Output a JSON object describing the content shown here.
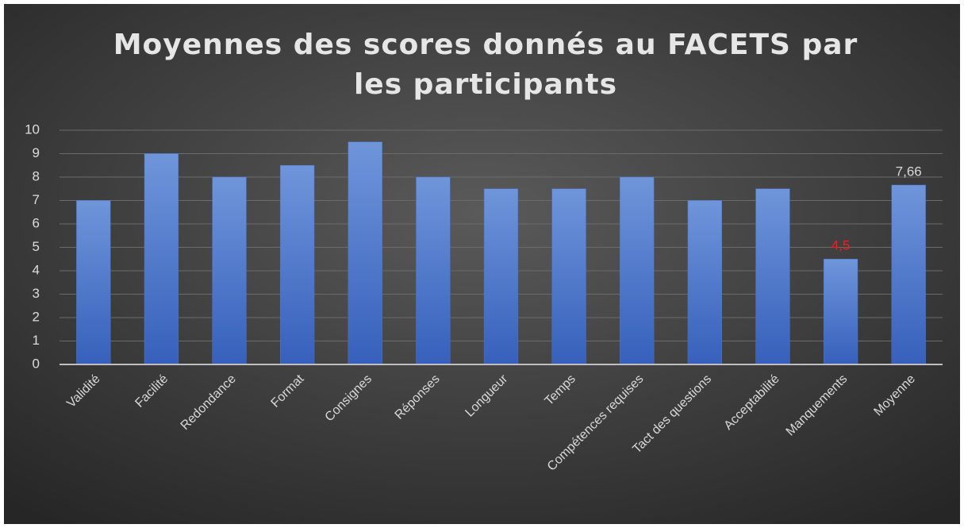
{
  "chart_data": {
    "type": "bar",
    "title": "Moyennes des scores donnés au FACETS par les participants",
    "categories": [
      "Validité",
      "Facilité",
      "Redondance",
      "Format",
      "Consignes",
      "Réponses",
      "Longueur",
      "Temps",
      "Compétences requises",
      "Tact des questions",
      "Acceptabilité",
      "Manquements",
      "Moyenne"
    ],
    "values": [
      7,
      9,
      8,
      8.5,
      9.5,
      8,
      7.5,
      7.5,
      8,
      7,
      7.5,
      4.5,
      7.66
    ],
    "value_labels": [
      null,
      null,
      null,
      null,
      null,
      null,
      null,
      null,
      null,
      null,
      null,
      "4,5",
      "7,66"
    ],
    "value_label_colors": [
      null,
      null,
      null,
      null,
      null,
      null,
      null,
      null,
      null,
      null,
      null,
      "#ff1a1a",
      "#d9d9d9"
    ],
    "color": "#4a74cc",
    "ylim": [
      0,
      10
    ],
    "yticks": [
      0,
      1,
      2,
      3,
      4,
      5,
      6,
      7,
      8,
      9,
      10
    ],
    "grid": true
  }
}
